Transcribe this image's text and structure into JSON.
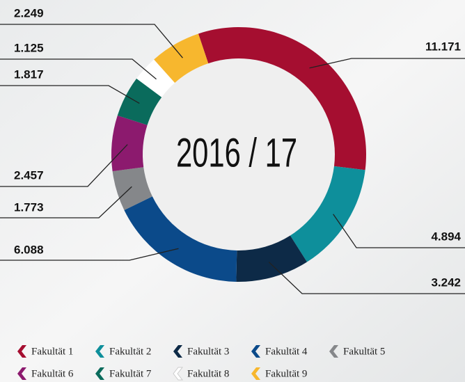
{
  "chart_data": {
    "type": "donut",
    "title": "2016 / 17",
    "categories": [
      "Fakultät 1",
      "Fakultät 2",
      "Fakultät 3",
      "Fakultät 4",
      "Fakultät 5",
      "Fakultät 6",
      "Fakultät 7",
      "Fakultät 8",
      "Fakultät 9"
    ],
    "values": [
      11171,
      4894,
      3242,
      6088,
      1773,
      2457,
      1817,
      1125,
      2249
    ],
    "value_labels": [
      "11.171",
      "4.894",
      "3.242",
      "6.088",
      "1.773",
      "2.457",
      "1.817",
      "1.125",
      "2.249"
    ],
    "colors": [
      "#a50e30",
      "#0e8f9b",
      "#0d2a47",
      "#0b4a8a",
      "#85878a",
      "#8c1a6e",
      "#0a6b5c",
      "#ffffff",
      "#f7b72e"
    ],
    "legend": "bottom"
  }
}
